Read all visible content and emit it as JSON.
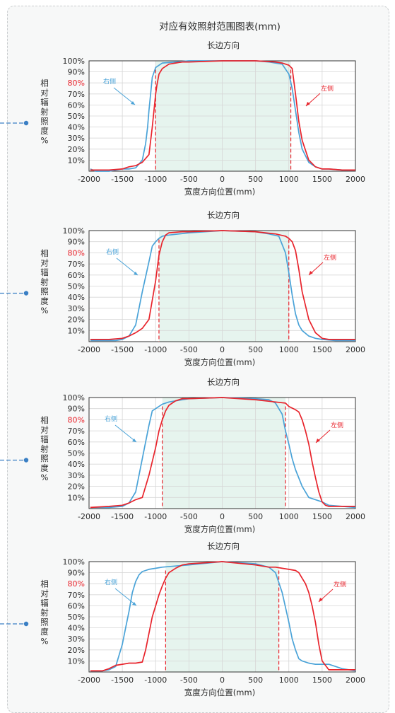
{
  "page": {
    "title": "对应有效照射范围图表(mm)",
    "colors": {
      "right_side": "#4aa3d8",
      "left_side": "#e8242c",
      "ylabel_highlight": "#e8242c",
      "connector": "#3a7fc4",
      "plateau_fill": "#e6f4ee"
    }
  },
  "chart_data": [
    {
      "type": "line",
      "title": "长边方向",
      "xlabel": "宽度方向位置(mm)",
      "ylabel": "相对辐射照度%",
      "xlim": [
        -2000,
        2000
      ],
      "ylim": [
        0,
        100
      ],
      "x_ticks": [
        "-2000",
        "-1500",
        "-1000",
        "-500",
        "0",
        "500",
        "1000",
        "1500",
        "2000"
      ],
      "y_ticks": [
        "10%",
        "20%",
        "30%",
        "40%",
        "50%",
        "60%",
        "70%",
        "80%",
        "90%",
        "100%"
      ],
      "highlight_tick": "80%",
      "grid": true,
      "threshold_x": [
        -1000,
        1030
      ],
      "series": [
        {
          "name": "右侧",
          "color": "#4aa3d8",
          "x": [
            -1980,
            -1900,
            -1700,
            -1500,
            -1400,
            -1300,
            -1200,
            -1150,
            -1120,
            -1100,
            -1050,
            -1000,
            -900,
            -700,
            -500,
            0,
            500,
            700,
            800,
            900,
            1000,
            1050,
            1100,
            1150,
            1200,
            1300,
            1400,
            1500,
            1600,
            1800,
            2000
          ],
          "y": [
            2,
            0,
            0,
            2,
            2,
            3,
            10,
            25,
            40,
            55,
            85,
            94,
            98,
            99,
            100,
            100,
            100,
            99,
            98,
            97,
            88,
            75,
            55,
            35,
            20,
            8,
            4,
            2,
            2,
            1,
            1
          ]
        },
        {
          "name": "左侧",
          "color": "#e8242c",
          "x": [
            -1980,
            -1700,
            -1500,
            -1400,
            -1300,
            -1200,
            -1100,
            -1050,
            -1000,
            -980,
            -950,
            -900,
            -800,
            -700,
            -600,
            -500,
            0,
            500,
            800,
            900,
            1000,
            1050,
            1100,
            1150,
            1200,
            1300,
            1400,
            1500,
            1600,
            1800,
            2000
          ],
          "y": [
            1,
            1,
            2,
            4,
            5,
            8,
            15,
            40,
            70,
            78,
            88,
            93,
            97,
            98,
            99,
            99,
            100,
            100,
            99,
            98,
            96,
            93,
            70,
            45,
            28,
            10,
            4,
            2,
            2,
            1,
            1
          ]
        }
      ]
    },
    {
      "type": "line",
      "title": "长边方向",
      "xlabel": "宽度方向位置(mm)",
      "ylabel": "相对辐射照度%",
      "xlim": [
        -2000,
        2000
      ],
      "ylim": [
        0,
        100
      ],
      "x_ticks": [
        "-2000",
        "-1500",
        "-1000",
        "-500",
        "0",
        "500",
        "1000",
        "1500",
        "2000"
      ],
      "y_ticks": [
        "10%",
        "20%",
        "30%",
        "40%",
        "50%",
        "60%",
        "70%",
        "80%",
        "90%",
        "100%"
      ],
      "highlight_tick": "80%",
      "grid": true,
      "threshold_x": [
        -950,
        1000
      ],
      "series": [
        {
          "name": "右侧",
          "color": "#4aa3d8",
          "x": [
            -1980,
            -1800,
            -1600,
            -1500,
            -1400,
            -1300,
            -1200,
            -1100,
            -1050,
            -1000,
            -950,
            -900,
            -800,
            -500,
            0,
            500,
            700,
            850,
            950,
            1000,
            1050,
            1100,
            1150,
            1200,
            1300,
            1400,
            1500,
            1700,
            1800,
            2000
          ],
          "y": [
            1,
            1,
            1,
            2,
            5,
            15,
            45,
            72,
            86,
            90,
            93,
            95,
            96,
            98,
            100,
            99,
            97,
            95,
            80,
            62,
            42,
            25,
            15,
            10,
            5,
            3,
            2,
            1,
            1,
            1
          ]
        },
        {
          "name": "左侧",
          "color": "#e8242c",
          "x": [
            -1980,
            -1700,
            -1500,
            -1400,
            -1300,
            -1200,
            -1100,
            -1000,
            -950,
            -900,
            -850,
            -800,
            -600,
            -500,
            0,
            500,
            800,
            950,
            1000,
            1050,
            1100,
            1150,
            1200,
            1300,
            1400,
            1500,
            1600,
            1800,
            2000
          ],
          "y": [
            2,
            2,
            3,
            5,
            8,
            12,
            20,
            55,
            78,
            90,
            96,
            98,
            99,
            99,
            100,
            99,
            97,
            95,
            93,
            90,
            82,
            65,
            45,
            20,
            8,
            3,
            2,
            2,
            2
          ]
        }
      ]
    },
    {
      "type": "line",
      "title": "长边方向",
      "xlabel": "宽度方向位置(mm)",
      "ylabel": "相对辐射照度%",
      "xlim": [
        -2000,
        2000
      ],
      "ylim": [
        0,
        100
      ],
      "x_ticks": [
        "-2000",
        "-1500",
        "-1000",
        "-500",
        "0",
        "500",
        "1000",
        "1500",
        "2000"
      ],
      "y_ticks": [
        "10%",
        "20%",
        "30%",
        "40%",
        "50%",
        "60%",
        "70%",
        "80%",
        "90%",
        "100%"
      ],
      "highlight_tick": "80%",
      "grid": true,
      "threshold_x": [
        -900,
        950
      ],
      "series": [
        {
          "name": "右侧",
          "color": "#4aa3d8",
          "x": [
            -1980,
            -1700,
            -1500,
            -1400,
            -1300,
            -1250,
            -1200,
            -1150,
            -1100,
            -1050,
            -1000,
            -900,
            -800,
            -600,
            -500,
            0,
            500,
            700,
            800,
            900,
            950,
            1000,
            1050,
            1100,
            1200,
            1300,
            1400,
            1500,
            1600,
            1800,
            2000
          ],
          "y": [
            1,
            1,
            2,
            5,
            15,
            30,
            45,
            60,
            75,
            88,
            90,
            94,
            96,
            98,
            99,
            100,
            99,
            98,
            95,
            85,
            70,
            58,
            45,
            35,
            20,
            10,
            8,
            6,
            3,
            2,
            1
          ]
        },
        {
          "name": "左侧",
          "color": "#e8242c",
          "x": [
            -1980,
            -1700,
            -1500,
            -1400,
            -1300,
            -1200,
            -1100,
            -1000,
            -950,
            -900,
            -850,
            -800,
            -700,
            -600,
            -500,
            0,
            500,
            800,
            950,
            1000,
            1100,
            1150,
            1200,
            1250,
            1300,
            1350,
            1400,
            1450,
            1500,
            1550,
            1600,
            1800,
            2000
          ],
          "y": [
            1,
            2,
            3,
            5,
            8,
            10,
            30,
            55,
            70,
            80,
            88,
            93,
            97,
            99,
            99,
            100,
            98,
            96,
            95,
            92,
            89,
            87,
            80,
            70,
            58,
            42,
            28,
            15,
            6,
            3,
            2,
            2,
            2
          ]
        }
      ]
    },
    {
      "type": "line",
      "title": "长边方向",
      "xlabel": "宽度方向位置(mm)",
      "ylabel": "相对辐射照度%",
      "xlim": [
        -2000,
        2000
      ],
      "ylim": [
        0,
        100
      ],
      "x_ticks": [
        "-2000",
        "-1500",
        "-1000",
        "-500",
        "0",
        "500",
        "1000",
        "1500",
        "2000"
      ],
      "y_ticks": [
        "10%",
        "20%",
        "30%",
        "40%",
        "50%",
        "60%",
        "70%",
        "80%",
        "90%",
        "100%"
      ],
      "highlight_tick": "80%",
      "grid": true,
      "threshold_x": [
        -850,
        850
      ],
      "series": [
        {
          "name": "右侧",
          "color": "#4aa3d8",
          "x": [
            -1980,
            -1800,
            -1700,
            -1600,
            -1500,
            -1450,
            -1400,
            -1350,
            -1300,
            -1250,
            -1200,
            -1150,
            -1100,
            -1000,
            -900,
            -700,
            -500,
            0,
            500,
            700,
            800,
            900,
            1000,
            1050,
            1100,
            1150,
            1200,
            1300,
            1400,
            1500,
            1600,
            1700,
            1800,
            2000
          ],
          "y": [
            1,
            1,
            2,
            5,
            25,
            40,
            55,
            72,
            82,
            88,
            91,
            92,
            93,
            94,
            95,
            96,
            97,
            100,
            98,
            95,
            90,
            72,
            45,
            30,
            20,
            12,
            10,
            8,
            7,
            7,
            7,
            5,
            3,
            1
          ]
        },
        {
          "name": "左侧",
          "color": "#e8242c",
          "x": [
            -1980,
            -1800,
            -1700,
            -1600,
            -1500,
            -1400,
            -1300,
            -1200,
            -1150,
            -1100,
            -1050,
            -1000,
            -950,
            -900,
            -850,
            -800,
            -700,
            -600,
            -500,
            0,
            500,
            700,
            800,
            900,
            1000,
            1100,
            1150,
            1200,
            1250,
            1300,
            1350,
            1400,
            1450,
            1500,
            1600,
            1700,
            1800,
            2000
          ],
          "y": [
            1,
            1,
            3,
            6,
            7,
            8,
            8,
            9,
            20,
            35,
            50,
            60,
            70,
            78,
            85,
            90,
            94,
            97,
            98,
            100,
            97,
            95,
            95,
            94,
            93,
            92,
            90,
            85,
            80,
            72,
            60,
            45,
            25,
            10,
            2,
            2,
            2,
            2
          ]
        }
      ]
    }
  ]
}
